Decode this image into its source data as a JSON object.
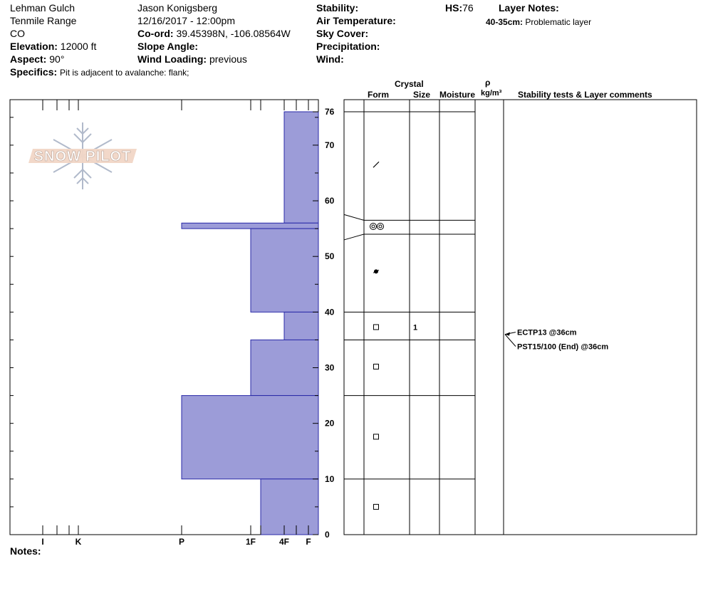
{
  "header": {
    "location": "Lehman Gulch",
    "range": "Tenmile Range",
    "state": "CO",
    "elevation_label": "Elevation:",
    "elevation_value": "12000 ft",
    "aspect_label": "Aspect:",
    "aspect_value": "90°",
    "specifics_label": "Specifics:",
    "specifics_value": "Pit is adjacent to avalanche: flank;",
    "observer": "Jason Konigsberg",
    "datetime": "12/16/2017 - 12:00pm",
    "coord_label": "Co-ord:",
    "coord_value": "39.45398N, -106.08564W",
    "slope_label": "Slope Angle:",
    "wind_loading_label": "Wind Loading:",
    "wind_loading_value": "previous",
    "stability_label": "Stability:",
    "air_temp_label": "Air Temperature:",
    "sky_cover_label": "Sky Cover:",
    "precip_label": "Precipitation:",
    "wind_label": "Wind:",
    "hs_label": "HS:",
    "hs_value": "76",
    "layer_notes_label": "Layer Notes:",
    "layer_note_range": "40-35cm:",
    "layer_note_text": "Problematic layer",
    "notes_label": "Notes:"
  },
  "logo": {
    "text": "SNOW PILOT"
  },
  "columns": {
    "crystal": "Crystal",
    "form": "Form",
    "size": "Size",
    "moisture": "Moisture",
    "rho": "ρ",
    "density_unit": "kg/m³",
    "stability_comments": "Stability tests & Layer comments"
  },
  "chart_data": {
    "type": "bar",
    "orientation": "horizontal",
    "y_axis": {
      "range": [
        0,
        76
      ],
      "ticks": [
        0,
        10,
        20,
        30,
        40,
        50,
        60,
        70,
        76
      ]
    },
    "hardness_scale": [
      "I",
      "K",
      "P",
      "1F",
      "4F",
      "F"
    ],
    "hardness_layers": [
      {
        "from": 76,
        "to": 56,
        "hardness": "4F"
      },
      {
        "from": 56,
        "to": 55,
        "hardness": "P"
      },
      {
        "from": 55,
        "to": 40,
        "hardness": "1F"
      },
      {
        "from": 40,
        "to": 35,
        "hardness": "4F"
      },
      {
        "from": 35,
        "to": 25,
        "hardness": "1F"
      },
      {
        "from": 25,
        "to": 10,
        "hardness": "P"
      },
      {
        "from": 10,
        "to": 0,
        "hardness": "1F-"
      }
    ],
    "bar_color": "#9c9cd8",
    "layer_boundaries": [
      76,
      56.5,
      54,
      40,
      35,
      25,
      10
    ],
    "crystal_forms": [
      {
        "height": 66.5,
        "form": "slash"
      },
      {
        "height": 55.4,
        "form": "double-circle"
      },
      {
        "height": 47.3,
        "form": "filled-dot"
      },
      {
        "height": 37.3,
        "form": "square",
        "size": "1"
      },
      {
        "height": 30.2,
        "form": "square"
      },
      {
        "height": 17.6,
        "form": "square"
      },
      {
        "height": 5.0,
        "form": "square"
      }
    ],
    "stability_tests": [
      {
        "label": "ECTP13 @36cm",
        "height": 36
      },
      {
        "label": "PST15/100 (End) @36cm",
        "height": 36
      }
    ]
  }
}
